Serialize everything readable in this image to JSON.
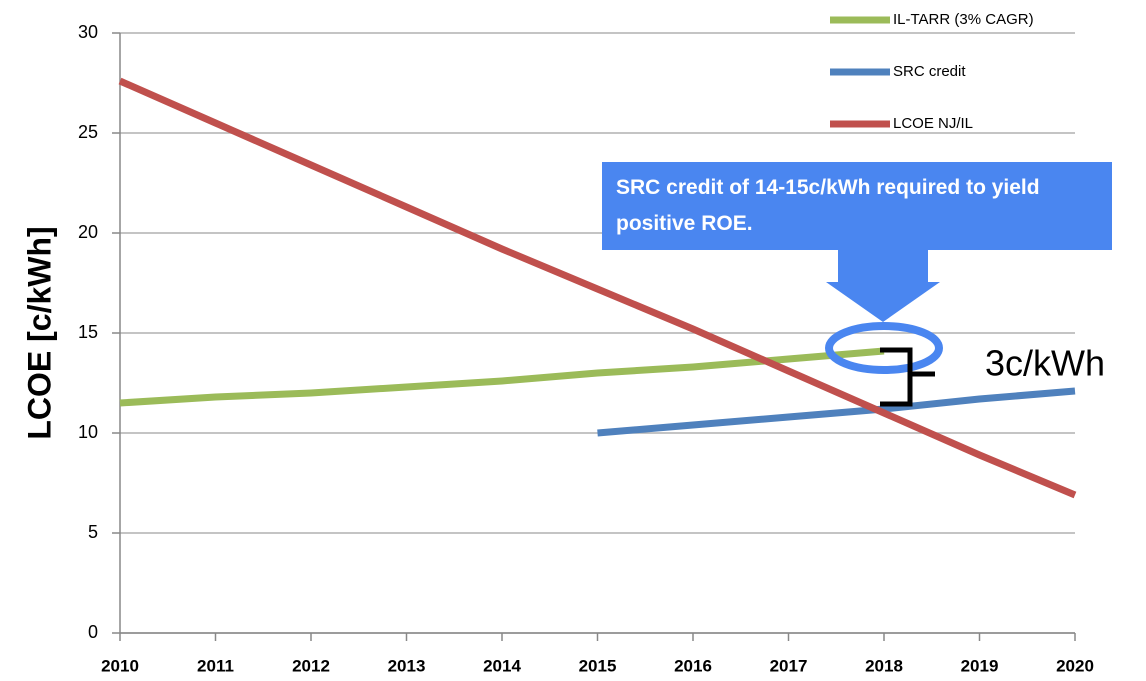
{
  "chart_data": {
    "type": "line",
    "y_label": "LCOE [c/kWh]",
    "x": [
      2010,
      2011,
      2012,
      2013,
      2014,
      2015,
      2016,
      2017,
      2018,
      2019,
      2020
    ],
    "xlim": [
      2010,
      2020
    ],
    "xticks": [
      2010,
      2011,
      2012,
      2013,
      2014,
      2015,
      2016,
      2017,
      2018,
      2019,
      2020
    ],
    "ylim": [
      0,
      30
    ],
    "yticks": [
      0,
      5,
      10,
      15,
      20,
      25,
      30
    ],
    "grid": true,
    "legend": "top-right",
    "series": [
      {
        "name": "IL-TARR (3% CAGR)",
        "color": "#9bbb59",
        "values": [
          11.5,
          11.8,
          12.0,
          12.3,
          12.6,
          13.0,
          13.3,
          13.7,
          14.1,
          null,
          null
        ]
      },
      {
        "name": "SRC credit",
        "color": "#4f81bd",
        "values": [
          null,
          null,
          null,
          null,
          null,
          10.0,
          10.4,
          10.8,
          11.2,
          11.7,
          12.1
        ]
      },
      {
        "name": "LCOE NJ/IL",
        "color": "#c0504d",
        "values": [
          27.6,
          25.5,
          23.4,
          21.3,
          19.2,
          17.2,
          15.2,
          13.1,
          11.0,
          8.9,
          6.9
        ]
      }
    ],
    "annotations": [
      "SRC credit of 14-15c/kWh required to yield positive ROE.",
      "3c/kWh"
    ]
  }
}
